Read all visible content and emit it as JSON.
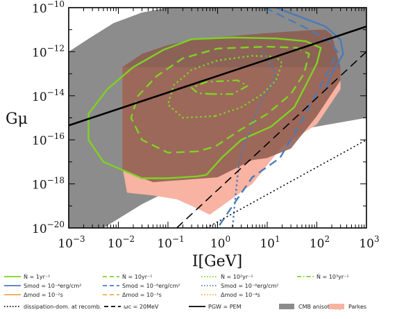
{
  "chart_data": {
    "type": "area",
    "title": "",
    "xlabel": "I[GeV]",
    "ylabel": "Gμ",
    "xscale": "log",
    "yscale": "log",
    "xlim": [
      0.001,
      1000
    ],
    "ylim": [
      1e-20,
      1e-10
    ],
    "xtick_labels": [
      "10^-3",
      "10^-2",
      "10^-1",
      "10^0",
      "10^1",
      "10^2",
      "10^3"
    ],
    "ytick_labels": [
      "10^-10",
      "10^-12",
      "10^-14",
      "10^-16",
      "10^-18",
      "10^-20"
    ],
    "colors": {
      "green": "#7ed321",
      "blue": "#4a7ab8",
      "orange": "#f5a64a",
      "cmb": "#8c8c8c",
      "parkes": "#f8b3a2",
      "brown": "#8c5a4d",
      "black": "#000000"
    },
    "regions": [
      {
        "name": "CMB anisotropy",
        "color": "#8c8c8c",
        "points": [
          [
            0.001,
            1e-12
          ],
          [
            0.003,
            5e-12
          ],
          [
            0.008,
            2e-11
          ],
          [
            0.03,
            6e-11
          ],
          [
            0.1,
            1e-10
          ],
          [
            1000,
            1e-10
          ],
          [
            1000,
            1e-15
          ],
          [
            30,
            2.5e-16
          ],
          [
            3,
            2e-17
          ],
          [
            0.3,
            1.6e-18
          ],
          [
            0.03,
            1.2e-19
          ],
          [
            0.005,
            1e-20
          ],
          [
            0.001,
            1e-20
          ]
        ]
      },
      {
        "name": "Parkes",
        "color": "#f8b3a2",
        "points": [
          [
            0.012,
            2e-13
          ],
          [
            0.012,
            6e-18
          ],
          [
            0.015,
            4e-19
          ],
          [
            0.05,
            3e-19
          ],
          [
            0.15,
            2e-19
          ],
          [
            0.3,
            1e-19
          ],
          [
            0.7,
            4e-20
          ],
          [
            2,
            2.2e-19
          ],
          [
            5,
            1e-18
          ],
          [
            20,
            5e-17
          ],
          [
            100,
            5e-16
          ],
          [
            300,
            2e-14
          ],
          [
            300,
            2e-13
          ]
        ]
      },
      {
        "name": "",
        "color": "#8c5a4d",
        "points": [
          [
            0.012,
            2e-13
          ],
          [
            0.03,
            8e-13
          ],
          [
            0.1,
            2e-12
          ],
          [
            0.3,
            3.5e-12
          ],
          [
            1,
            4.5e-12
          ],
          [
            10,
            7e-12
          ],
          [
            100,
            1e-11
          ],
          [
            150,
            1e-11
          ],
          [
            200,
            6e-12
          ],
          [
            300,
            2e-13
          ],
          [
            300,
            5e-14
          ],
          [
            100,
            1.2e-15
          ],
          [
            30,
            4e-17
          ],
          [
            10,
            1.5e-17
          ],
          [
            5,
            1.2e-17
          ],
          [
            1,
            2e-18
          ],
          [
            0.05,
            1.2e-18
          ],
          [
            0.012,
            4e-18
          ]
        ]
      }
    ],
    "lines": [
      {
        "label": "Ṅ = 1yr^-1",
        "color": "#7ed321",
        "dash": "solid",
        "points": [
          [
            0.4,
            2.2e-18
          ],
          [
            0.1,
            1.8e-18
          ],
          [
            0.03,
            1.8e-18
          ],
          [
            0.005,
            1e-17
          ],
          [
            0.0025,
            1e-16
          ],
          [
            0.0025,
            1.5e-15
          ],
          [
            0.006,
            2e-14
          ],
          [
            0.02,
            2e-13
          ],
          [
            0.08,
            1.2e-12
          ],
          [
            0.3,
            3.7e-12
          ],
          [
            2,
            4.4e-12
          ],
          [
            15,
            4e-12
          ],
          [
            60,
            3e-12
          ],
          [
            120,
            1.5e-12
          ],
          [
            100,
            3e-13
          ],
          [
            60,
            3e-14
          ],
          [
            35,
            3e-15
          ],
          [
            12,
            4e-16
          ],
          [
            3,
            1e-16
          ],
          [
            1.2,
            1.5e-17
          ],
          [
            0.6,
            2.6e-18
          ],
          [
            0.4,
            2.2e-18
          ]
        ]
      },
      {
        "label": "Ṅ = 10yr^-1",
        "color": "#7ed321",
        "dash": "dashed",
        "points": [
          [
            0.4,
            3e-17
          ],
          [
            0.1,
            2.6e-17
          ],
          [
            0.03,
            1e-16
          ],
          [
            0.018,
            1e-15
          ],
          [
            0.025,
            1e-14
          ],
          [
            0.06,
            8e-14
          ],
          [
            0.2,
            5e-13
          ],
          [
            1,
            1.4e-12
          ],
          [
            10,
            1.7e-12
          ],
          [
            40,
            1.5e-12
          ],
          [
            70,
            8e-13
          ],
          [
            55,
            1e-13
          ],
          [
            30,
            1.2e-14
          ],
          [
            10,
            1.5e-15
          ],
          [
            3,
            3e-16
          ],
          [
            0.9,
            5e-17
          ],
          [
            0.4,
            3e-17
          ]
        ]
      },
      {
        "label": "Ṅ = 10^2yr^-1",
        "color": "#7ed321",
        "dash": "dotted",
        "points": [
          [
            0.9,
            1.2e-15
          ],
          [
            0.2,
            1e-15
          ],
          [
            0.1,
            4e-15
          ],
          [
            0.13,
            3e-14
          ],
          [
            0.3,
            1.5e-13
          ],
          [
            1,
            4e-13
          ],
          [
            5,
            6.5e-13
          ],
          [
            15,
            6e-13
          ],
          [
            20,
            3e-13
          ],
          [
            15,
            5e-14
          ],
          [
            8,
            1.2e-14
          ],
          [
            3,
            3e-15
          ],
          [
            0.9,
            1.2e-15
          ]
        ]
      },
      {
        "label": "Ṅ = 10^3yr^-1",
        "color": "#7ed321",
        "dash": "dashdot",
        "points": [
          [
            0.8,
            1.2e-14
          ],
          [
            0.4,
            1.3e-14
          ],
          [
            0.3,
            2.3e-14
          ],
          [
            0.6,
            4.3e-14
          ],
          [
            2.5,
            5e-14
          ],
          [
            4,
            2.8e-14
          ],
          [
            2,
            1.2e-14
          ],
          [
            0.8,
            1.2e-14
          ]
        ]
      },
      {
        "label": "S_mod = 10^-4erg/cm^2",
        "color": "#4a7ab8",
        "dash": "solid",
        "points": [
          [
            15,
            1e-10
          ],
          [
            150,
            1.4e-11
          ],
          [
            300,
            3.5e-12
          ],
          [
            340,
            8e-13
          ],
          [
            200,
            1e-13
          ],
          [
            150,
            1.7e-14
          ]
        ]
      },
      {
        "label": "S_mod = 10^-6erg/cm^2",
        "color": "#4a7ab8",
        "dash": "dashed",
        "points": [
          [
            9,
            1e-10
          ],
          [
            60,
            1.2e-11
          ],
          [
            180,
            3e-12
          ],
          [
            260,
            1e-12
          ],
          [
            160,
            1e-13
          ],
          [
            70,
            3e-15
          ],
          [
            40,
            3e-16
          ],
          [
            18,
            1.5e-17
          ],
          [
            5,
            2e-18
          ],
          [
            2,
            1e-19
          ],
          [
            1,
            1e-20
          ]
        ]
      },
      {
        "label": "S_mod = 10^-8erg/cm^2",
        "color": "#4a7ab8",
        "dash": "dotted",
        "points": [
          [
            8,
            1e-12
          ],
          [
            15,
            1e-13
          ],
          [
            12,
            3e-14
          ],
          [
            7,
            4e-15
          ],
          [
            5,
            5e-16
          ],
          [
            3,
            3e-17
          ],
          [
            2.6,
            4e-18
          ],
          [
            2.3,
            3e-19
          ],
          [
            2,
            1e-20
          ]
        ]
      },
      {
        "label": "dissipation-dom. at recomb.",
        "color": "#000000",
        "dash": "dotted-fine",
        "points": [
          [
            0.6,
            1e-20
          ],
          [
            1000,
            1e-16
          ]
        ]
      },
      {
        "label": "ω_c = 20MeV",
        "color": "#000000",
        "dash": "dashed",
        "points": [
          [
            0.15,
            1e-20
          ],
          [
            1000,
            1e-12
          ]
        ]
      },
      {
        "label": "P_GW = P_EM",
        "color": "#000000",
        "dash": "solid",
        "points": [
          [
            0.001,
            4.5e-16
          ],
          [
            1000,
            1.4e-11
          ]
        ]
      }
    ]
  },
  "legend": {
    "rows": [
      [
        {
          "label": "Ṅ = 1yr⁻¹",
          "color": "#7ed321",
          "dash": "solid",
          "kind": "line"
        },
        {
          "label": "Ṅ = 10yr⁻¹",
          "color": "#7ed321",
          "dash": "dashed",
          "kind": "line"
        },
        {
          "label": "Ṅ = 10²yr⁻¹",
          "color": "#7ed321",
          "dash": "dotted",
          "kind": "line"
        },
        {
          "label": "Ṅ = 10³yr⁻¹",
          "color": "#7ed321",
          "dash": "dashdot",
          "kind": "line"
        }
      ],
      [
        {
          "label": "Smod = 10⁻⁴erg/cm²",
          "color": "#4a7ab8",
          "dash": "solid",
          "kind": "line"
        },
        {
          "label": "Smod = 10⁻⁶erg/cm²",
          "color": "#4a7ab8",
          "dash": "dashed",
          "kind": "line"
        },
        {
          "label": "Smod = 10⁻⁸erg/cm²",
          "color": "#4a7ab8",
          "dash": "dotted",
          "kind": "line"
        }
      ],
      [
        {
          "label": "Δmod = 10⁻²s",
          "color": "#f5a64a",
          "dash": "solid",
          "kind": "line"
        },
        {
          "label": "Δmod = 10⁻³s",
          "color": "#f5a64a",
          "dash": "dashed",
          "kind": "line"
        },
        {
          "label": "Δmod = 10⁻⁴s",
          "color": "#f5a64a",
          "dash": "dotted",
          "kind": "line"
        }
      ],
      [
        {
          "label": "dissipation-dom. at recomb.",
          "color": "#000000",
          "dash": "dotted",
          "kind": "line"
        },
        {
          "label": "ωc = 20MeV",
          "color": "#000000",
          "dash": "dashed",
          "kind": "line"
        },
        {
          "label": "PGW = PEM",
          "color": "#000000",
          "dash": "solid",
          "kind": "line"
        },
        {
          "label": "CMB anisotropy",
          "color": "#8c8c8c",
          "dash": "solid",
          "kind": "patch"
        },
        {
          "label": "Parkes",
          "color": "#f8b3a2",
          "dash": "solid",
          "kind": "patch"
        }
      ]
    ]
  }
}
